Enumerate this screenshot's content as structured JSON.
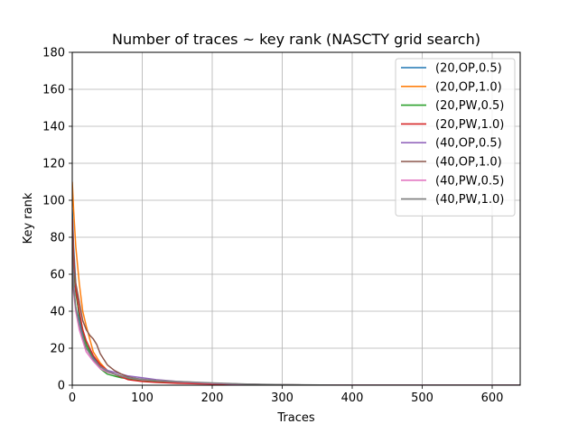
{
  "chart_data": {
    "type": "line",
    "title": "Number of traces ~ key rank (NASCTY grid search)",
    "xlabel": "Traces",
    "ylabel": "Key rank",
    "xlim": [
      0,
      640
    ],
    "ylim": [
      0,
      180
    ],
    "xticks": [
      0,
      100,
      200,
      300,
      400,
      500,
      600
    ],
    "yticks": [
      0,
      20,
      40,
      60,
      80,
      100,
      120,
      140,
      160,
      180
    ],
    "grid": true,
    "legend_position": "top-right",
    "series": [
      {
        "name": "(20,OP,0.5)",
        "color": "#1f77b4",
        "x": [
          0,
          2,
          5,
          10,
          15,
          20,
          30,
          40,
          50,
          60,
          70,
          80,
          100,
          120,
          150,
          200,
          250,
          300,
          400,
          640
        ],
        "y": [
          95,
          75,
          55,
          35,
          28,
          22,
          15,
          11,
          8,
          6,
          5,
          4,
          3,
          2,
          1.5,
          1,
          0.5,
          0.2,
          0,
          0
        ]
      },
      {
        "name": "(20,OP,1.0)",
        "color": "#ff7f0e",
        "x": [
          0,
          2,
          5,
          10,
          15,
          20,
          25,
          30,
          40,
          50,
          60,
          70,
          80,
          100,
          120,
          150,
          200,
          250,
          300,
          400,
          640
        ],
        "y": [
          110,
          95,
          75,
          55,
          40,
          32,
          25,
          18,
          12,
          8,
          6,
          5,
          4,
          3,
          2,
          1.5,
          1,
          0.5,
          0.2,
          0,
          0
        ]
      },
      {
        "name": "(20,PW,0.5)",
        "color": "#2ca02c",
        "x": [
          0,
          2,
          5,
          10,
          15,
          20,
          30,
          40,
          50,
          60,
          70,
          80,
          100,
          120,
          150,
          200,
          250,
          300,
          400,
          640
        ],
        "y": [
          80,
          62,
          50,
          38,
          30,
          22,
          14,
          9,
          6,
          5,
          4,
          3.5,
          2.5,
          2,
          1.5,
          0.8,
          0.4,
          0.2,
          0,
          0
        ]
      },
      {
        "name": "(20,PW,1.0)",
        "color": "#d62728",
        "x": [
          0,
          2,
          5,
          10,
          15,
          20,
          30,
          40,
          50,
          60,
          70,
          80,
          100,
          120,
          150,
          200,
          250,
          300,
          400,
          640
        ],
        "y": [
          90,
          70,
          52,
          40,
          30,
          24,
          16,
          11,
          8,
          6,
          4.5,
          3,
          2,
          1.5,
          1,
          0.6,
          0.3,
          0.1,
          0,
          0
        ]
      },
      {
        "name": "(40,OP,0.5)",
        "color": "#9467bd",
        "x": [
          0,
          2,
          5,
          10,
          15,
          20,
          30,
          40,
          50,
          60,
          70,
          80,
          100,
          120,
          150,
          200,
          250,
          300,
          400,
          640
        ],
        "y": [
          70,
          55,
          42,
          32,
          25,
          20,
          14,
          10,
          8,
          7,
          6,
          5,
          4,
          3,
          2,
          1,
          0.5,
          0.2,
          0,
          0
        ]
      },
      {
        "name": "(40,OP,1.0)",
        "color": "#8c564b",
        "x": [
          0,
          2,
          5,
          10,
          15,
          20,
          25,
          30,
          35,
          40,
          50,
          60,
          70,
          80,
          100,
          120,
          150,
          200,
          250,
          300,
          400,
          640
        ],
        "y": [
          85,
          65,
          55,
          45,
          35,
          30,
          27,
          25,
          22,
          17,
          11,
          8,
          6,
          4.5,
          3,
          2.5,
          1.8,
          1,
          0.5,
          0.2,
          0,
          0
        ]
      },
      {
        "name": "(40,PW,0.5)",
        "color": "#e377c2",
        "x": [
          0,
          2,
          5,
          10,
          15,
          20,
          30,
          40,
          50,
          60,
          70,
          80,
          100,
          120,
          150,
          200,
          250,
          300,
          400,
          640
        ],
        "y": [
          60,
          50,
          40,
          30,
          24,
          18,
          13,
          9,
          7,
          6,
          5,
          4,
          3,
          2.5,
          1.8,
          1,
          0.5,
          0.2,
          0,
          0
        ]
      },
      {
        "name": "(40,PW,1.0)",
        "color": "#7f7f7f",
        "x": [
          0,
          2,
          5,
          10,
          15,
          20,
          30,
          40,
          50,
          60,
          70,
          80,
          100,
          120,
          150,
          200,
          250,
          300,
          400,
          640
        ],
        "y": [
          65,
          52,
          42,
          33,
          26,
          20,
          14,
          10,
          7.5,
          6,
          5,
          4,
          3.2,
          2.5,
          2,
          1.2,
          0.6,
          0.3,
          0,
          0
        ]
      }
    ]
  }
}
